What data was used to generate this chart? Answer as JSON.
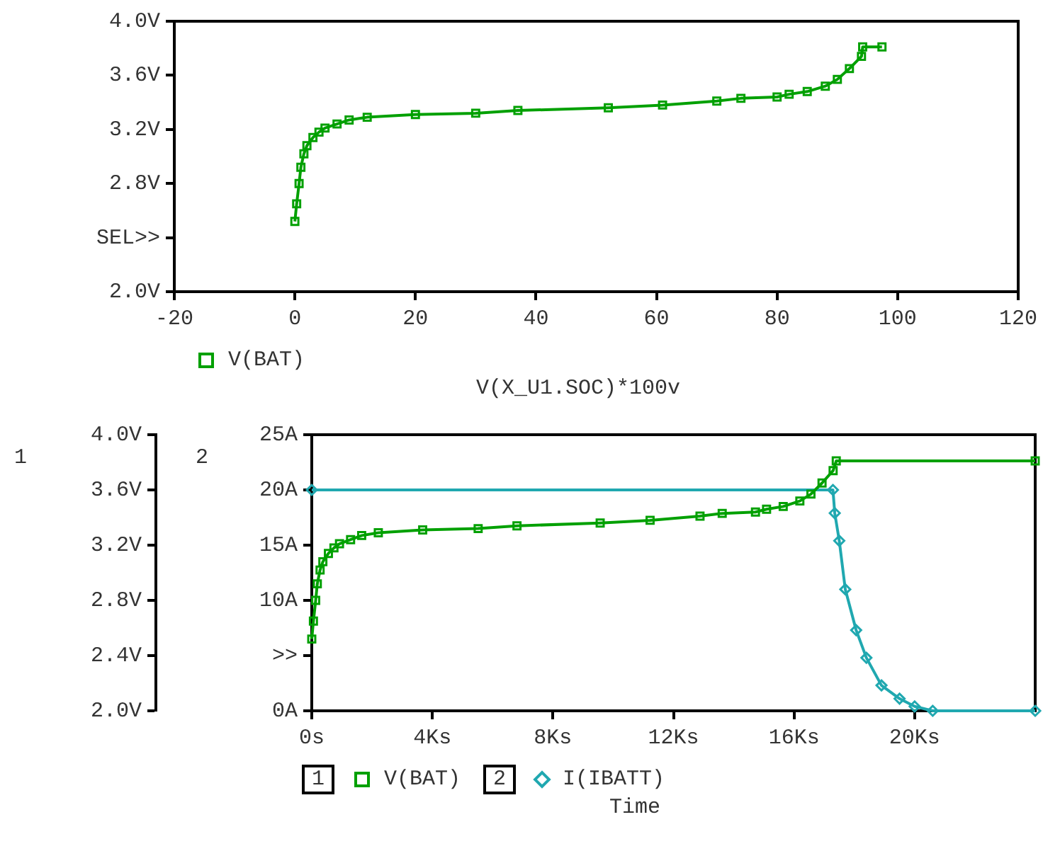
{
  "chart_data": [
    {
      "type": "line",
      "xlabel": "V(X_U1.SOC)*100v",
      "xlim": [
        -20,
        120
      ],
      "xticks": [
        -20,
        0,
        20,
        40,
        60,
        80,
        100,
        120
      ],
      "ylim": [
        2,
        4
      ],
      "yticks": [
        {
          "value": 2,
          "label": "2.0V"
        },
        {
          "value": 2.4,
          "label": "SEL>>"
        },
        {
          "value": 2.8,
          "label": "2.8V"
        },
        {
          "value": 3.2,
          "label": "3.2V"
        },
        {
          "value": 3.6,
          "label": "3.6V"
        },
        {
          "value": 4,
          "label": "4.0V"
        }
      ],
      "legend": "bottom",
      "series": [
        {
          "name": "V(BAT)",
          "color": "#00a000",
          "marker": "square",
          "x": [
            0,
            0.3,
            0.7,
            1,
            1.5,
            2,
            3,
            4,
            5,
            7,
            9,
            12,
            20,
            30,
            37,
            52,
            61,
            70,
            74,
            80,
            82,
            85,
            88,
            90,
            92,
            94,
            94.2,
            97.4
          ],
          "values": [
            2.52,
            2.65,
            2.8,
            2.92,
            3.02,
            3.08,
            3.14,
            3.18,
            3.21,
            3.24,
            3.27,
            3.29,
            3.31,
            3.32,
            3.34,
            3.36,
            3.38,
            3.41,
            3.43,
            3.44,
            3.46,
            3.48,
            3.52,
            3.57,
            3.65,
            3.74,
            3.81,
            3.81
          ]
        }
      ]
    },
    {
      "type": "line",
      "xlabel": "Time",
      "annotations": [
        "1",
        "2"
      ],
      "xlim": [
        0,
        24
      ],
      "xticks": [
        {
          "value": 0,
          "label": "0s"
        },
        {
          "value": 4,
          "label": "4Ks"
        },
        {
          "value": 8,
          "label": "8Ks"
        },
        {
          "value": 12,
          "label": "12Ks"
        },
        {
          "value": 16,
          "label": "16Ks"
        },
        {
          "value": 20,
          "label": "20Ks"
        }
      ],
      "ylim": [
        2,
        4
      ],
      "yticks": [
        {
          "value": 2,
          "label": "2.0V"
        },
        {
          "value": 2.4,
          "label": "2.4V"
        },
        {
          "value": 2.8,
          "label": "2.8V"
        },
        {
          "value": 3.2,
          "label": "3.2V"
        },
        {
          "value": 3.6,
          "label": "3.6V"
        },
        {
          "value": 4,
          "label": "4.0V"
        }
      ],
      "y2lim": [
        0,
        25
      ],
      "y2ticks": [
        {
          "value": 0,
          "label": "0A"
        },
        {
          "value": 5,
          "label": ">>"
        },
        {
          "value": 10,
          "label": "10A"
        },
        {
          "value": 15,
          "label": "15A"
        },
        {
          "value": 20,
          "label": "20A"
        },
        {
          "value": 25,
          "label": "25A"
        }
      ],
      "legend": "bottom",
      "series": [
        {
          "name": "V(BAT)",
          "color": "#00a000",
          "marker": "square",
          "x": [
            0,
            0.055,
            0.13,
            0.184,
            0.276,
            0.368,
            0.552,
            0.736,
            0.92,
            1.288,
            1.656,
            2.208,
            3.68,
            5.52,
            6.808,
            9.568,
            11.224,
            12.88,
            13.616,
            14.72,
            15.088,
            15.64,
            16.192,
            16.56,
            16.928,
            17.296,
            17.4,
            24
          ],
          "values": [
            2.52,
            2.65,
            2.8,
            2.92,
            3.02,
            3.08,
            3.14,
            3.18,
            3.21,
            3.24,
            3.27,
            3.29,
            3.31,
            3.32,
            3.34,
            3.36,
            3.38,
            3.41,
            3.43,
            3.44,
            3.46,
            3.48,
            3.52,
            3.57,
            3.65,
            3.74,
            3.81,
            3.81
          ]
        },
        {
          "name": "I(IBATT)",
          "color": "#20a8b0",
          "marker": "diamond",
          "axis": "y2",
          "x": [
            0,
            17.29,
            17.35,
            17.5,
            17.7,
            18.06,
            18.4,
            18.9,
            19.5,
            20,
            20.6,
            24
          ],
          "values": [
            20,
            20,
            17.9,
            15.4,
            11,
            7.3,
            4.8,
            2.3,
            1.1,
            0.4,
            0,
            0
          ]
        }
      ]
    }
  ]
}
